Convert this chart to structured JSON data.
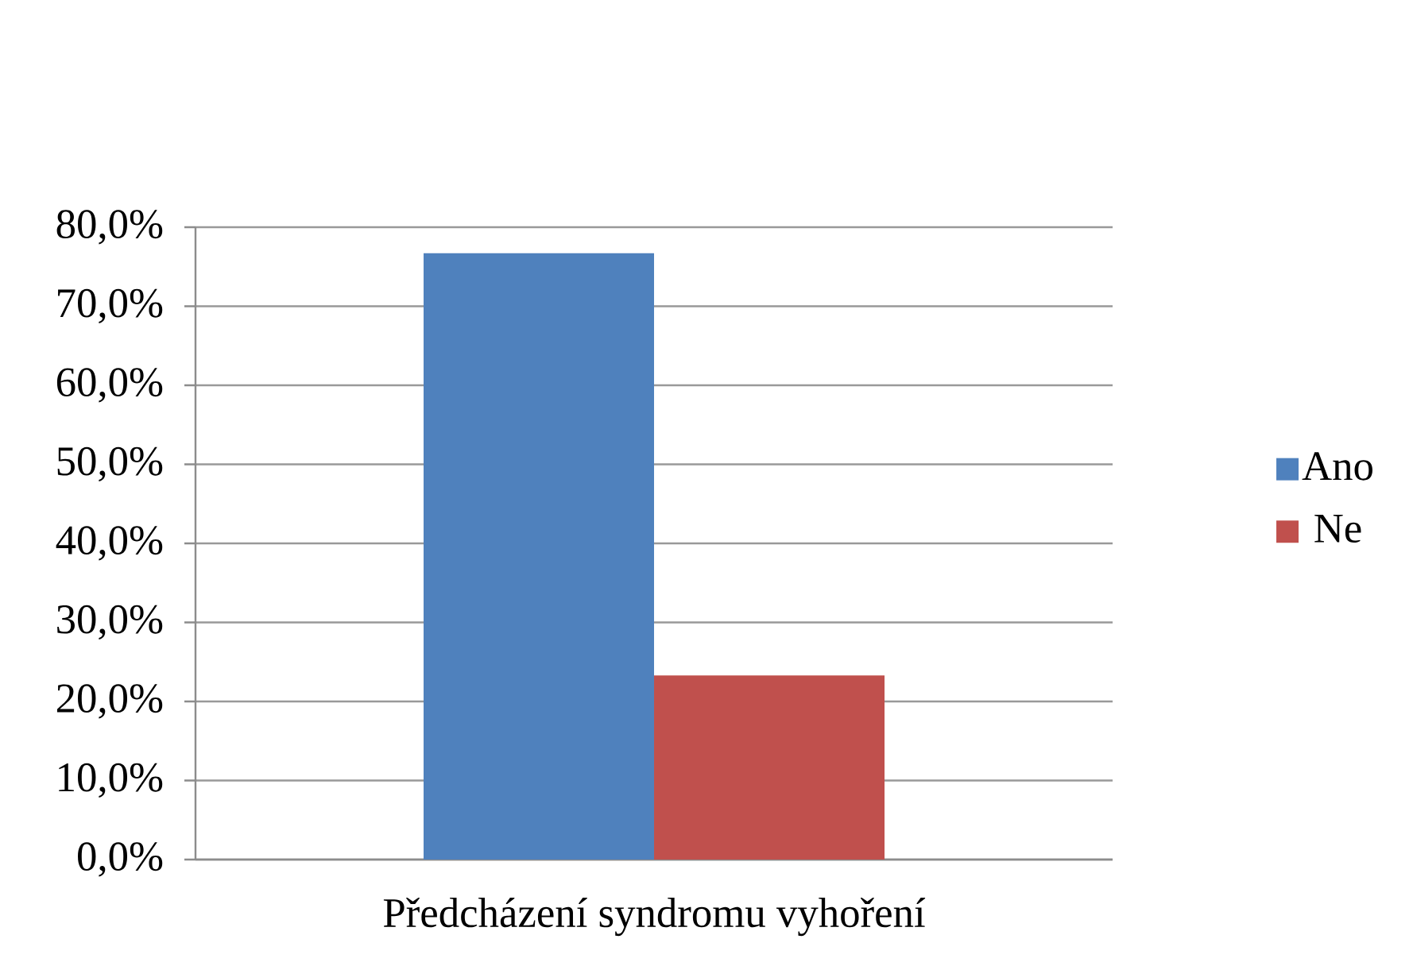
{
  "chart_data": {
    "type": "bar",
    "categories": [
      "Předcházení syndromu vyhoření"
    ],
    "series": [
      {
        "name": "Ano",
        "color": "#4f81bd",
        "values": [
          76.7
        ]
      },
      {
        "name": "Ne",
        "color": "#c0504d",
        "values": [
          23.3
        ]
      }
    ],
    "ylim": [
      0,
      80
    ],
    "yticks": [
      {
        "value": 0,
        "label": "0,0%"
      },
      {
        "value": 10,
        "label": "10,0%"
      },
      {
        "value": 20,
        "label": "20,0%"
      },
      {
        "value": 30,
        "label": "30,0%"
      },
      {
        "value": 40,
        "label": "40,0%"
      },
      {
        "value": 50,
        "label": "50,0%"
      },
      {
        "value": 60,
        "label": "60,0%"
      },
      {
        "value": 70,
        "label": "70,0%"
      },
      {
        "value": 80,
        "label": "80,0%"
      }
    ],
    "grid": "y",
    "legend": "right"
  }
}
